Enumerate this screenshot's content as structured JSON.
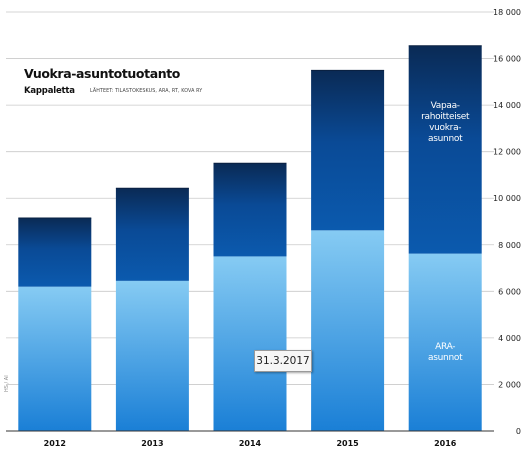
{
  "chart_data": {
    "type": "bar",
    "stacked": true,
    "title": "Vuokra-asuntotuotanto",
    "subtitle": "Kappaletta",
    "source": "LÄHTEET: TILASTOKESKUS, ARA, RT, KOVA RY",
    "credit": "HS / AI",
    "categories": [
      "2012",
      "2013",
      "2014",
      "2015",
      "2016"
    ],
    "series": [
      {
        "name": "ARA-asunnot",
        "values": [
          6200,
          6450,
          7500,
          8620,
          7620
        ],
        "color": "#2a8ad8"
      },
      {
        "name": "Vapaa-rahoitteiset vuokra-asunnot",
        "values": [
          2950,
          3980,
          4000,
          6870,
          8930
        ],
        "color": "#0a4fa0"
      }
    ],
    "series_labels": [
      {
        "series": 0,
        "lines": [
          "ARA-",
          "asunnot"
        ]
      },
      {
        "series": 1,
        "lines": [
          "Vapaa-",
          "rahoitteiset",
          "vuokra-",
          "asunnot"
        ]
      }
    ],
    "y_axis": {
      "min": 0,
      "max": 18000,
      "ticks": [
        0,
        2000,
        4000,
        6000,
        8000,
        10000,
        12000,
        14000,
        16000,
        18000
      ],
      "tick_labels": [
        "0",
        "2 000",
        "4 000",
        "6 000",
        "8 000",
        "10 000",
        "12 000",
        "14 000",
        "16 000",
        "18 000"
      ],
      "position": "right"
    },
    "grid": true,
    "annotation": "31.3.2017"
  }
}
